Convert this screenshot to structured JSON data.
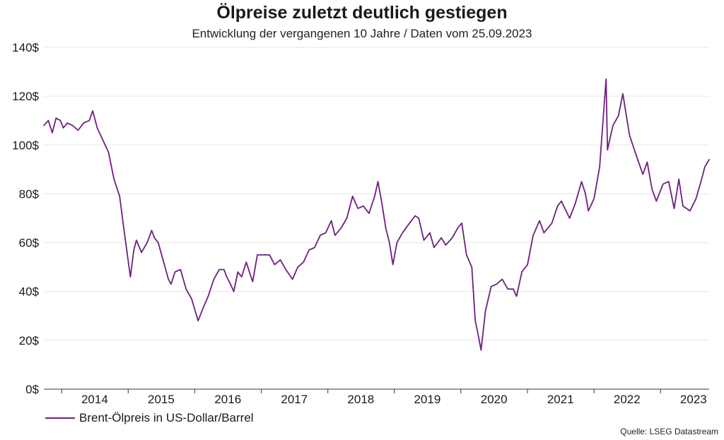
{
  "title": "Ölpreise zuletzt deutlich gestiegen",
  "subtitle": "Entwicklung der vergangenen 10 Jahre / Daten vom 25.09.2023",
  "source": "Quelle: LSEG Datastream",
  "colors": {
    "line": "#6e1f7e",
    "grid": "#e6e6e6",
    "axis": "#333333"
  },
  "chart_data": {
    "type": "line",
    "title": "Ölpreise zuletzt deutlich gestiegen",
    "subtitle": "Entwicklung der vergangenen 10 Jahre / Daten vom 25.09.2023",
    "xlabel": "",
    "ylabel": "",
    "xlim": [
      "2013-09-25",
      "2023-09-25"
    ],
    "ylim": [
      0,
      140
    ],
    "grid": true,
    "legend_position": "bottom-left",
    "y_ticks": [
      {
        "value": 0,
        "label": "0$"
      },
      {
        "value": 20,
        "label": "20$"
      },
      {
        "value": 40,
        "label": "40$"
      },
      {
        "value": 60,
        "label": "60$"
      },
      {
        "value": 80,
        "label": "80$"
      },
      {
        "value": 100,
        "label": "100$"
      },
      {
        "value": 120,
        "label": "120$"
      },
      {
        "value": 140,
        "label": "140$"
      }
    ],
    "x_ticks": [
      {
        "value": "2014-07-01",
        "label": "2014"
      },
      {
        "value": "2015-07-01",
        "label": "2015"
      },
      {
        "value": "2016-07-01",
        "label": "2016"
      },
      {
        "value": "2017-07-01",
        "label": "2017"
      },
      {
        "value": "2018-07-01",
        "label": "2018"
      },
      {
        "value": "2019-07-01",
        "label": "2019"
      },
      {
        "value": "2020-07-01",
        "label": "2020"
      },
      {
        "value": "2021-07-01",
        "label": "2021"
      },
      {
        "value": "2022-07-01",
        "label": "2022"
      },
      {
        "value": "2023-07-01",
        "label": "2023"
      }
    ],
    "series": [
      {
        "name": "Brent-Ölpreis in US-Dollar/Barrel",
        "x": [
          "2013-09-25",
          "2013-10-20",
          "2013-11-10",
          "2013-12-01",
          "2013-12-25",
          "2014-01-10",
          "2014-02-01",
          "2014-03-01",
          "2014-04-01",
          "2014-05-01",
          "2014-06-01",
          "2014-06-20",
          "2014-07-15",
          "2014-08-15",
          "2014-09-15",
          "2014-10-15",
          "2014-11-15",
          "2014-12-15",
          "2015-01-13",
          "2015-02-01",
          "2015-02-15",
          "2015-03-15",
          "2015-04-15",
          "2015-05-10",
          "2015-05-25",
          "2015-06-15",
          "2015-07-15",
          "2015-08-10",
          "2015-08-24",
          "2015-09-15",
          "2015-10-15",
          "2015-11-15",
          "2015-12-15",
          "2016-01-20",
          "2016-02-15",
          "2016-03-15",
          "2016-04-15",
          "2016-05-15",
          "2016-06-10",
          "2016-06-25",
          "2016-07-15",
          "2016-08-03",
          "2016-08-25",
          "2016-09-15",
          "2016-10-10",
          "2016-11-14",
          "2016-12-10",
          "2017-01-15",
          "2017-02-15",
          "2017-03-15",
          "2017-04-15",
          "2017-05-15",
          "2017-06-21",
          "2017-07-20",
          "2017-08-20",
          "2017-09-20",
          "2017-10-20",
          "2017-11-20",
          "2017-12-20",
          "2018-01-20",
          "2018-02-09",
          "2018-03-15",
          "2018-04-15",
          "2018-05-17",
          "2018-06-15",
          "2018-07-15",
          "2018-08-15",
          "2018-09-15",
          "2018-10-03",
          "2018-10-25",
          "2018-11-15",
          "2018-12-05",
          "2018-12-24",
          "2019-01-15",
          "2019-02-15",
          "2019-03-15",
          "2019-04-25",
          "2019-05-15",
          "2019-06-12",
          "2019-07-15",
          "2019-08-07",
          "2019-09-16",
          "2019-10-10",
          "2019-11-15",
          "2019-12-15",
          "2020-01-06",
          "2020-02-01",
          "2020-03-01",
          "2020-03-20",
          "2020-04-06",
          "2020-04-21",
          "2020-05-15",
          "2020-06-15",
          "2020-07-15",
          "2020-08-15",
          "2020-09-15",
          "2020-10-15",
          "2020-11-02",
          "2020-12-01",
          "2021-01-01",
          "2021-02-01",
          "2021-03-08",
          "2021-04-01",
          "2021-05-15",
          "2021-06-15",
          "2021-07-06",
          "2021-08-20",
          "2021-09-20",
          "2021-10-25",
          "2021-11-15",
          "2021-12-01",
          "2022-01-01",
          "2022-02-01",
          "2022-03-08",
          "2022-03-16",
          "2022-04-15",
          "2022-05-15",
          "2022-06-08",
          "2022-07-15",
          "2022-08-15",
          "2022-09-26",
          "2022-10-20",
          "2022-11-15",
          "2022-12-09",
          "2023-01-15",
          "2023-02-15",
          "2023-03-17",
          "2023-04-12",
          "2023-05-04",
          "2023-06-12",
          "2023-07-15",
          "2023-08-15",
          "2023-09-01",
          "2023-09-25"
        ],
        "values": [
          108,
          110,
          105,
          111,
          110,
          107,
          109,
          108,
          106,
          109,
          110,
          114,
          107,
          102,
          97,
          86,
          79,
          62,
          46,
          57,
          61,
          56,
          60,
          65,
          62,
          60,
          52,
          45,
          43,
          48,
          49,
          41,
          37,
          28,
          33,
          38,
          45,
          49,
          49,
          46,
          43,
          40,
          48,
          46,
          52,
          44,
          55,
          55,
          55,
          51,
          53,
          49,
          45,
          50,
          52,
          57,
          58,
          63,
          64,
          69,
          63,
          66,
          70,
          79,
          74,
          75,
          72,
          79,
          85,
          76,
          66,
          60,
          51,
          60,
          64,
          67,
          71,
          70,
          61,
          64,
          58,
          62,
          59,
          62,
          66,
          68,
          55,
          50,
          28,
          22,
          16,
          32,
          42,
          43,
          45,
          41,
          41,
          38,
          48,
          51,
          63,
          69,
          64,
          68,
          75,
          77,
          70,
          76,
          85,
          80,
          73,
          78,
          91,
          127,
          98,
          108,
          112,
          121,
          104,
          97,
          88,
          93,
          82,
          77,
          84,
          85,
          74,
          86,
          75,
          73,
          78,
          86,
          91,
          94
        ]
      }
    ]
  },
  "legend": {
    "label": "Brent-Ölpreis in US-Dollar/Barrel"
  }
}
